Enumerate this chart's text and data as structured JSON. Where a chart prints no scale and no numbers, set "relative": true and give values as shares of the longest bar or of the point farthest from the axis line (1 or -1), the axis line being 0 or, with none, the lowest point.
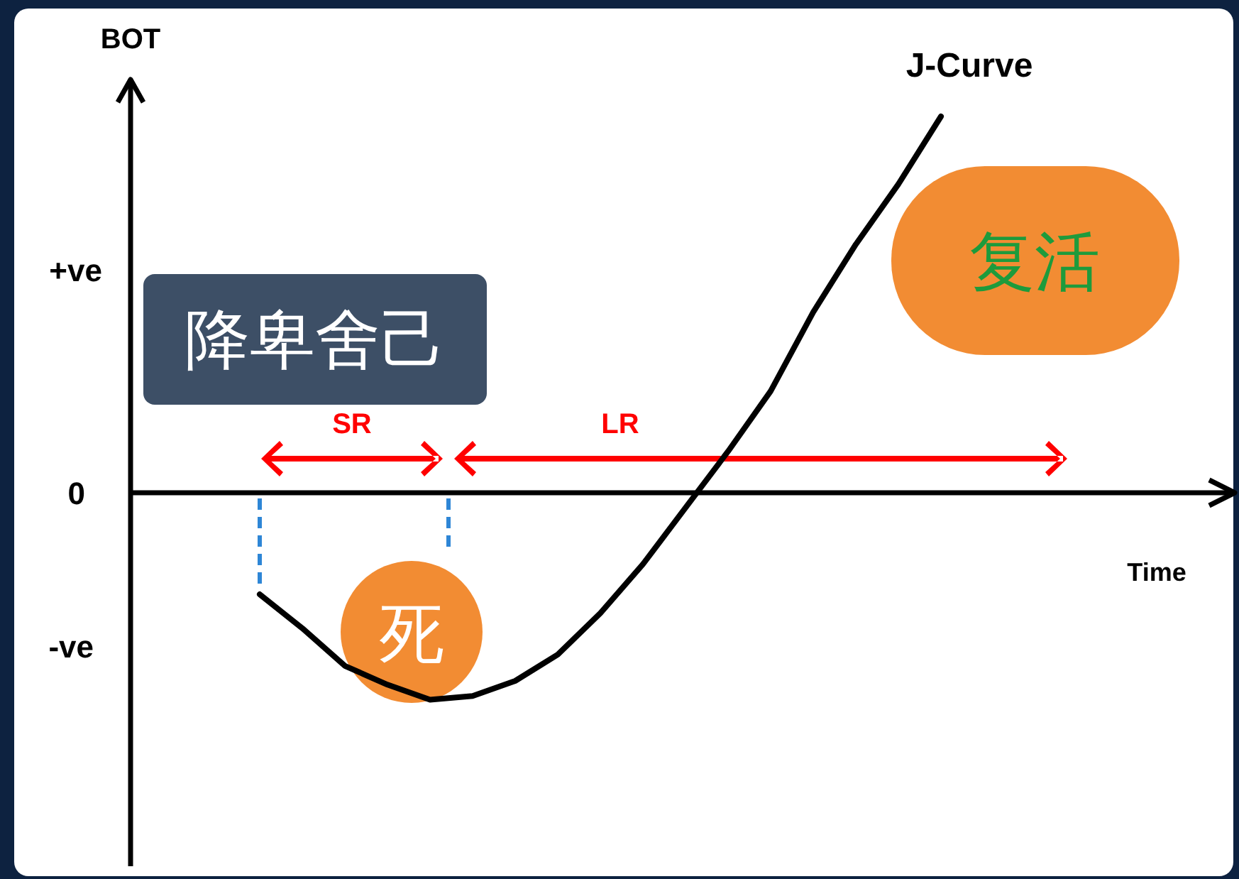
{
  "chart_data": {
    "type": "line",
    "relative": true,
    "ylabel": "BOT",
    "categories": [
      null,
      null,
      null,
      null,
      null,
      null,
      null,
      null,
      null,
      null,
      null,
      null,
      null,
      null,
      null,
      null,
      null
    ],
    "series": [
      {
        "name": "J-Curve",
        "color": "#000000",
        "values": [
          -0.27,
          -0.36,
          -0.46,
          -0.51,
          -0.55,
          -0.54,
          -0.5,
          -0.43,
          -0.32,
          -0.19,
          -0.04,
          0.11,
          0.27,
          0.48,
          0.66,
          0.82,
          1.0
        ]
      }
    ],
    "annotations": [
      "+ve",
      "0",
      "-ve",
      "SR",
      "LR",
      "降卑舍己",
      "复活",
      "死",
      "Time"
    ]
  }
}
